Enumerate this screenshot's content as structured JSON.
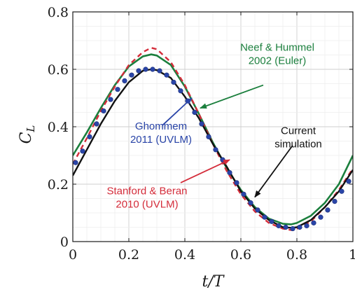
{
  "chart_data": {
    "type": "line",
    "title": "",
    "xlabel": "t/T",
    "ylabel": "C_L",
    "xlim": [
      0,
      1
    ],
    "ylim": [
      0,
      0.8
    ],
    "xticks": [
      0,
      0.2,
      0.4,
      0.6,
      0.8,
      1
    ],
    "xtick_labels": [
      "0",
      "0.2",
      "0.4",
      "0.6",
      "0.8",
      "1"
    ],
    "yticks": [
      0,
      0.2,
      0.4,
      0.6,
      0.8
    ],
    "ytick_labels": [
      "0",
      "0.2",
      "0.4",
      "0.6",
      "0.8"
    ],
    "grid": true,
    "legend": "none",
    "series": [
      {
        "name": "Current simulation",
        "color": "#111111",
        "style": "solid",
        "x": [
          0,
          0.05,
          0.1,
          0.15,
          0.2,
          0.25,
          0.28,
          0.3,
          0.35,
          0.4,
          0.45,
          0.5,
          0.55,
          0.6,
          0.65,
          0.7,
          0.75,
          0.78,
          0.8,
          0.85,
          0.9,
          0.95,
          1.0
        ],
        "y": [
          0.23,
          0.32,
          0.41,
          0.49,
          0.555,
          0.595,
          0.6,
          0.597,
          0.57,
          0.505,
          0.43,
          0.34,
          0.26,
          0.175,
          0.115,
          0.075,
          0.05,
          0.048,
          0.05,
          0.075,
          0.12,
          0.175,
          0.25
        ]
      },
      {
        "name": "Ghommem 2011 (UVLM)",
        "color": "#2a45a8",
        "style": "markers",
        "x": [
          0.01,
          0.035,
          0.06,
          0.085,
          0.11,
          0.135,
          0.16,
          0.185,
          0.21,
          0.235,
          0.26,
          0.285,
          0.31,
          0.335,
          0.36,
          0.385,
          0.41,
          0.435,
          0.46,
          0.485,
          0.51,
          0.535,
          0.56,
          0.585,
          0.61,
          0.635,
          0.66,
          0.685,
          0.71,
          0.735,
          0.76,
          0.785,
          0.81,
          0.835,
          0.86,
          0.885,
          0.91,
          0.935,
          0.96,
          0.985
        ],
        "y": [
          0.275,
          0.315,
          0.365,
          0.41,
          0.455,
          0.495,
          0.53,
          0.56,
          0.58,
          0.595,
          0.6,
          0.6,
          0.595,
          0.58,
          0.555,
          0.525,
          0.49,
          0.45,
          0.41,
          0.365,
          0.32,
          0.285,
          0.24,
          0.205,
          0.165,
          0.135,
          0.11,
          0.085,
          0.07,
          0.055,
          0.05,
          0.045,
          0.05,
          0.055,
          0.065,
          0.085,
          0.11,
          0.14,
          0.175,
          0.21
        ]
      },
      {
        "name": "Stanford & Beran 2010 (UVLM)",
        "color": "#d42c3a",
        "style": "dashed",
        "x": [
          0,
          0.05,
          0.1,
          0.15,
          0.2,
          0.25,
          0.28,
          0.3,
          0.35,
          0.4,
          0.45,
          0.5,
          0.55,
          0.6,
          0.65,
          0.7,
          0.75,
          0.78,
          0.8,
          0.85,
          0.9,
          0.95,
          1.0
        ],
        "y": [
          0.27,
          0.36,
          0.455,
          0.54,
          0.615,
          0.66,
          0.675,
          0.67,
          0.625,
          0.545,
          0.445,
          0.34,
          0.245,
          0.165,
          0.105,
          0.065,
          0.045,
          0.04,
          0.045,
          0.07,
          0.12,
          0.18,
          0.255
        ]
      },
      {
        "name": "Neef & Hummel 2002 (Euler)",
        "color": "#1b7f3d",
        "style": "solid",
        "x": [
          0,
          0.05,
          0.1,
          0.15,
          0.2,
          0.25,
          0.28,
          0.3,
          0.35,
          0.4,
          0.45,
          0.5,
          0.55,
          0.6,
          0.65,
          0.7,
          0.75,
          0.78,
          0.8,
          0.85,
          0.9,
          0.95,
          1.0
        ],
        "y": [
          0.3,
          0.38,
          0.465,
          0.545,
          0.61,
          0.645,
          0.652,
          0.648,
          0.615,
          0.54,
          0.445,
          0.345,
          0.255,
          0.18,
          0.12,
          0.08,
          0.062,
          0.06,
          0.065,
          0.09,
          0.135,
          0.2,
          0.3
        ]
      }
    ],
    "annotations": [
      {
        "lines": [
          "Neef & Hummel",
          "2002 (Euler)"
        ],
        "color": "#1b7f3d",
        "text_at": [
          0.73,
          0.665
        ],
        "arrow_from": [
          0.68,
          0.545
        ],
        "arrow_to": [
          0.455,
          0.465
        ]
      },
      {
        "lines": [
          "Ghommem",
          "2011 (UVLM)"
        ],
        "color": "#2a45a8",
        "text_at": [
          0.315,
          0.39
        ],
        "arrow_from": [
          0.32,
          0.405
        ],
        "arrow_to": [
          0.425,
          0.5
        ]
      },
      {
        "lines": [
          "Current",
          "simulation"
        ],
        "color": "#111111",
        "text_at": [
          0.805,
          0.375
        ],
        "arrow_from": [
          0.785,
          0.335
        ],
        "arrow_to": [
          0.65,
          0.155
        ]
      },
      {
        "lines": [
          "Stanford & Beran",
          "2010 (UVLM)"
        ],
        "color": "#d42c3a",
        "text_at": [
          0.265,
          0.165
        ],
        "arrow_from": [
          0.385,
          0.205
        ],
        "arrow_to": [
          0.56,
          0.285
        ]
      }
    ]
  }
}
